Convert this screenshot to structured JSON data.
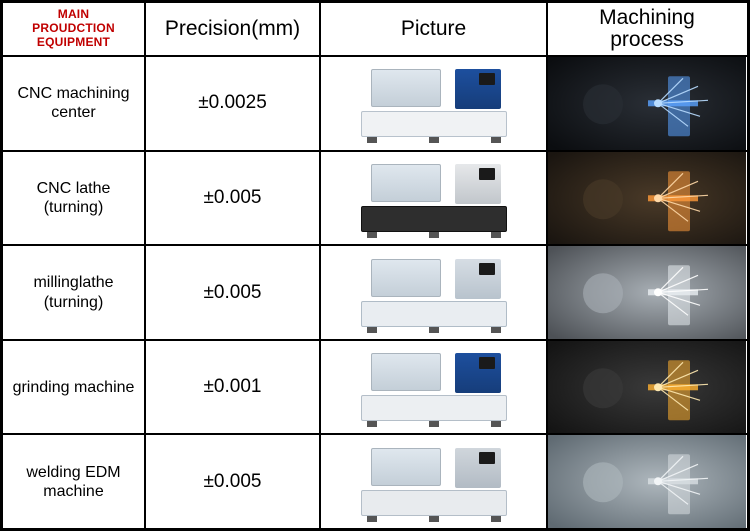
{
  "headers": {
    "equipment": "MAIN\nPROUDCTION\nEQUIPMENT",
    "precision": "Precision(mm)",
    "picture": "Picture",
    "process": "Machining\nprocess"
  },
  "rows": [
    {
      "name": "CNC machining center",
      "precision": "±0.0025",
      "machine_colors": {
        "base": "#f0f2f4",
        "base_border": "#b8c2cc",
        "cabinet": "#1d4f9e",
        "cabinet_shade": "#163d7a"
      },
      "process": {
        "bg1": "#0b0d10",
        "bg2": "#2a2f36",
        "accent": "#5aa3ff",
        "spark": "#b8dcff"
      }
    },
    {
      "name": "CNC lathe (turning)",
      "precision": "±0.005",
      "machine_colors": {
        "base": "#2e2e2e",
        "base_border": "#111",
        "cabinet": "#e6e8ea",
        "cabinet_shade": "#c1c6cb"
      },
      "process": {
        "bg1": "#1a1510",
        "bg2": "#4a3a28",
        "accent": "#ff9a3a",
        "spark": "#ffd9a8"
      }
    },
    {
      "name": "millinglathe (turning)",
      "precision": "±0.005",
      "machine_colors": {
        "base": "#e9edf1",
        "base_border": "#b0bcc7",
        "cabinet": "#d6dde4",
        "cabinet_shade": "#b8c3cd"
      },
      "process": {
        "bg1": "#4d5156",
        "bg2": "#a8afb5",
        "accent": "#e8edf1",
        "spark": "#ffffff"
      }
    },
    {
      "name": "grinding machine",
      "precision": "±0.001",
      "machine_colors": {
        "base": "#eceff2",
        "base_border": "#b4bec8",
        "cabinet": "#1d4f9e",
        "cabinet_shade": "#163d7a"
      },
      "process": {
        "bg1": "#141414",
        "bg2": "#3a3a3a",
        "accent": "#ffb030",
        "spark": "#ffe9b0"
      }
    },
    {
      "name": "welding EDM machine",
      "precision": "±0.005",
      "machine_colors": {
        "base": "#e8ebee",
        "base_border": "#b4bec8",
        "cabinet": "#d0d6dc",
        "cabinet_shade": "#b2bbc4"
      },
      "process": {
        "bg1": "#5f6a72",
        "bg2": "#aeb7bd",
        "accent": "#d8dee2",
        "spark": "#f2f5f7"
      }
    }
  ],
  "style": {
    "header_equip_color": "#c00000",
    "border_color": "#000000",
    "background": "#ffffff"
  }
}
